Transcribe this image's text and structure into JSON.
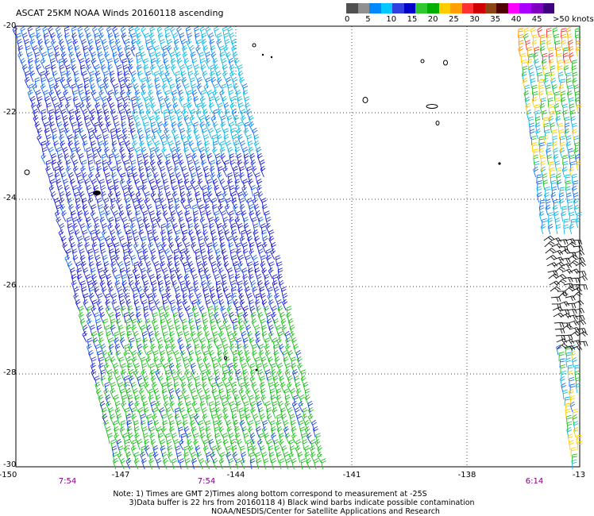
{
  "title": "ASCAT 25KM NOAA Winds 20160118 ascending",
  "scale": {
    "colors": [
      "#505050",
      "#909090",
      "#0088ff",
      "#00c8ff",
      "#3040e0",
      "#0000c8",
      "#30c830",
      "#00b000",
      "#ffcc00",
      "#ffa000",
      "#ff3030",
      "#d00000",
      "#8b4513",
      "#500000",
      "#ff00ff",
      "#aa00ff",
      "#8000c0",
      "#400080"
    ],
    "labels": [
      "0",
      "5",
      "10",
      "15",
      "20",
      "25",
      "30",
      "35",
      "40",
      "45",
      ">50 knots"
    ]
  },
  "axes": {
    "y_ticks": [
      "-20",
      "-22",
      "-24",
      "-26",
      "-28",
      "-30"
    ],
    "x_ticks": [
      "-150",
      "-147",
      "-144",
      "-141",
      "-138",
      "-13"
    ],
    "y_range": [
      -30,
      -20
    ],
    "x_range": [
      -150,
      -135
    ]
  },
  "times": [
    "7:54",
    "7:54",
    "6:14"
  ],
  "notes": {
    "line1": "Note: 1) Times are GMT 2)Times along bottom correspond to measurement at -25S",
    "line2": "3)Data buffer is 22 hrs from 20160118 4) Black wind barbs indicate possible contamination",
    "line3": "NOAA/NESDIS/Center for Satellite Applications and Research"
  }
}
